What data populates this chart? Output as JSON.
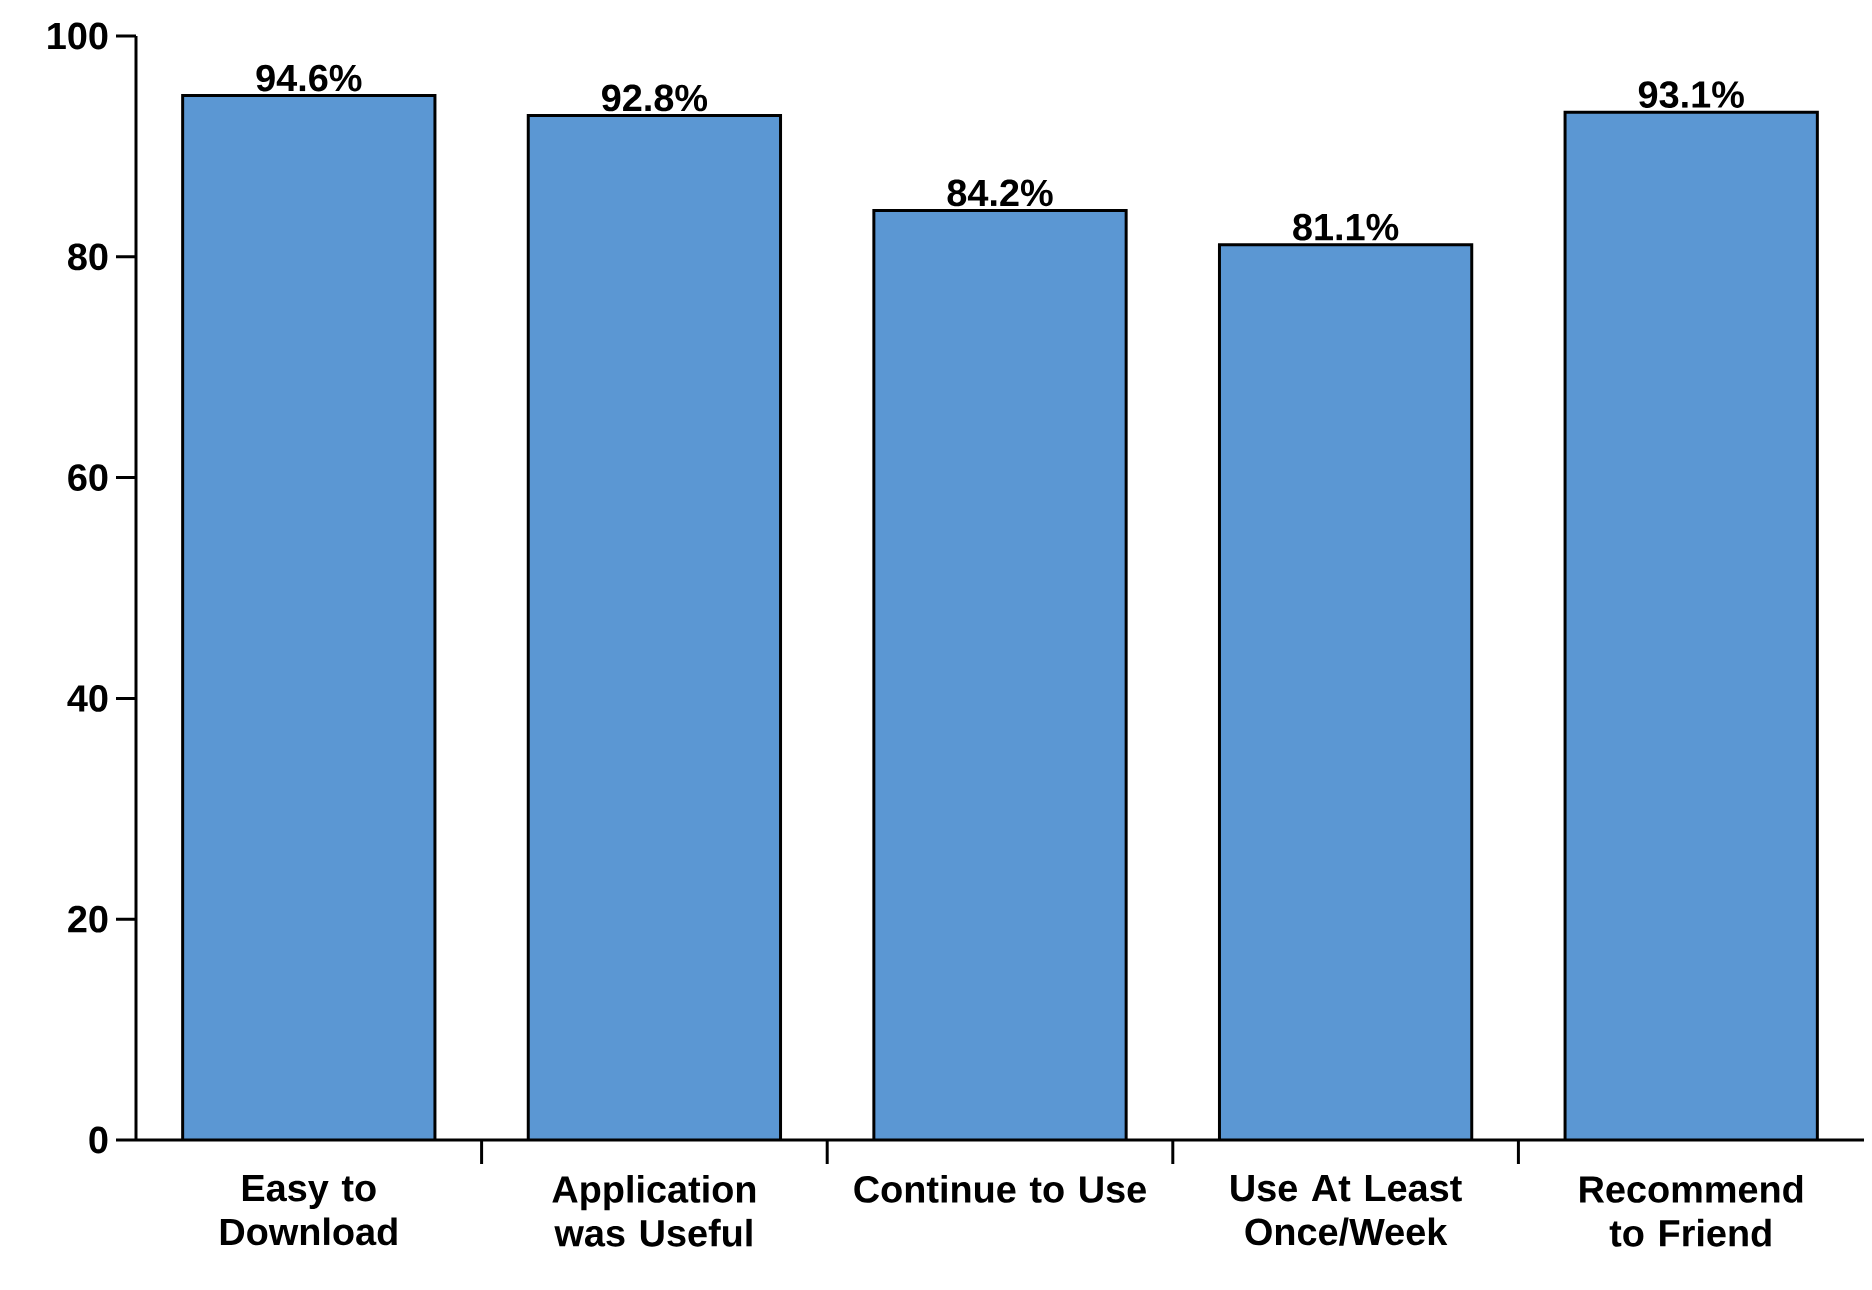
{
  "chart_data": {
    "type": "bar",
    "categories": [
      "Easy to Download",
      "Application was Useful",
      "Continue to Use",
      "Use At Least Once/Week",
      "Recommend to Friend"
    ],
    "values": [
      94.6,
      92.8,
      84.2,
      81.1,
      93.1
    ],
    "value_labels": [
      "94.6%",
      "92.8%",
      "84.2%",
      "81.1%",
      "93.1%"
    ],
    "color": "#5b97d3",
    "ylim": [
      0,
      100
    ],
    "yticks": [
      0,
      20,
      40,
      60,
      80,
      100
    ],
    "grid": false
  }
}
